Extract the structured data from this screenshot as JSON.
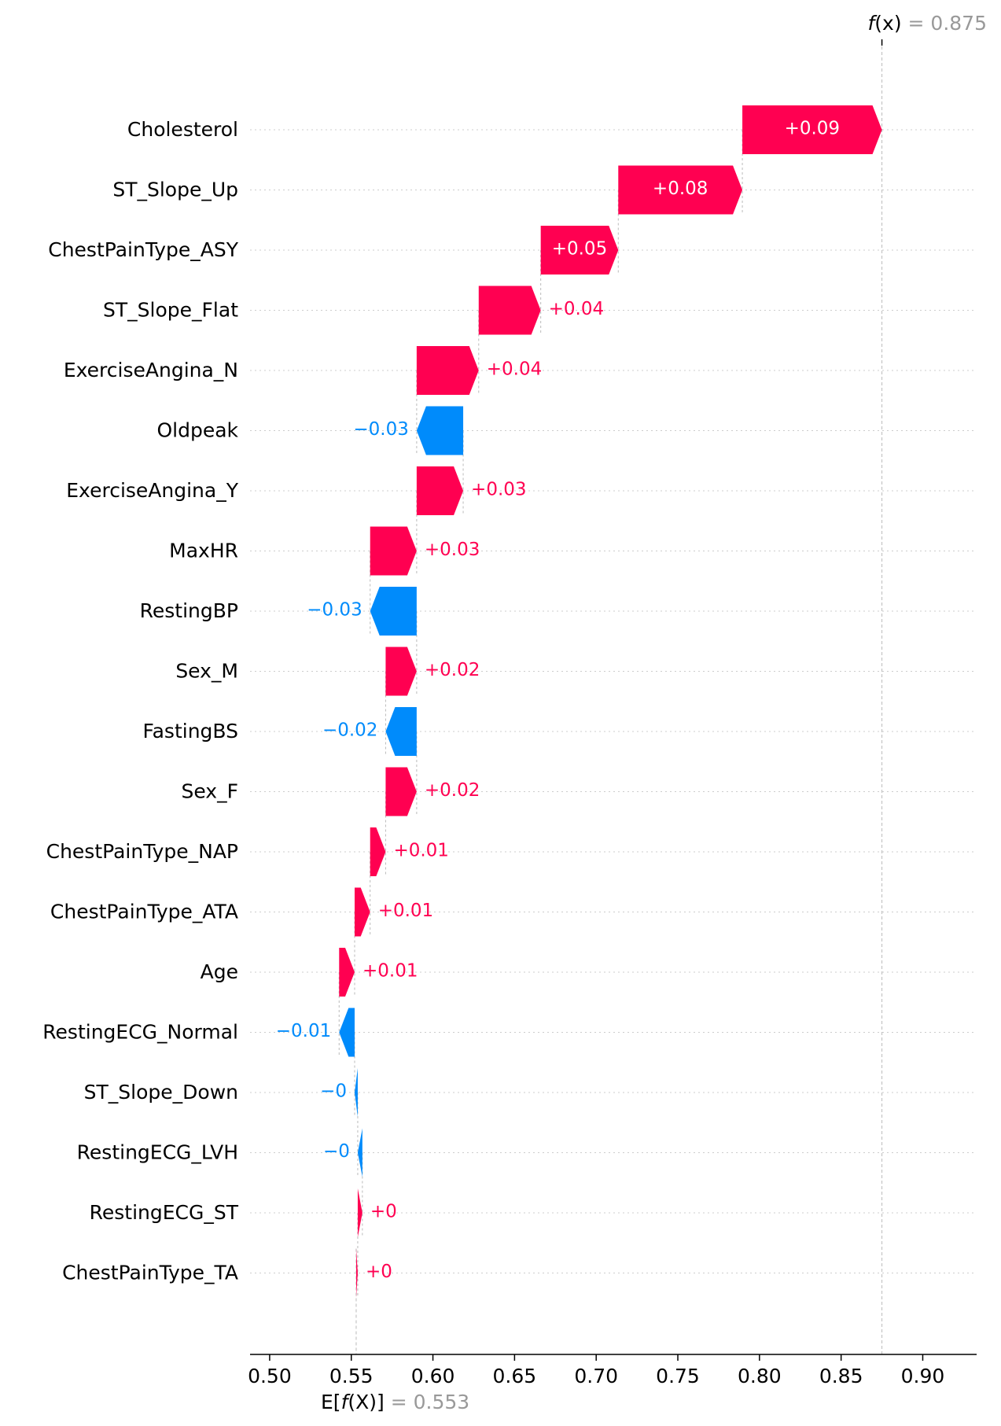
{
  "chart_data": {
    "type": "waterfall",
    "features": [
      {
        "name": "Cholesterol",
        "value": 0.09,
        "label": "+0.09"
      },
      {
        "name": "ST_Slope_Up",
        "value": 0.08,
        "label": "+0.08"
      },
      {
        "name": "ChestPainType_ASY",
        "value": 0.05,
        "label": "+0.05"
      },
      {
        "name": "ST_Slope_Flat",
        "value": 0.04,
        "label": "+0.04"
      },
      {
        "name": "ExerciseAngina_N",
        "value": 0.04,
        "label": "+0.04"
      },
      {
        "name": "Oldpeak",
        "value": -0.03,
        "label": "−0.03"
      },
      {
        "name": "ExerciseAngina_Y",
        "value": 0.03,
        "label": "+0.03"
      },
      {
        "name": "MaxHR",
        "value": 0.03,
        "label": "+0.03"
      },
      {
        "name": "RestingBP",
        "value": -0.03,
        "label": "−0.03"
      },
      {
        "name": "Sex_M",
        "value": 0.02,
        "label": "+0.02"
      },
      {
        "name": "FastingBS",
        "value": -0.02,
        "label": "−0.02"
      },
      {
        "name": "Sex_F",
        "value": 0.02,
        "label": "+0.02"
      },
      {
        "name": "ChestPainType_NAP",
        "value": 0.01,
        "label": "+0.01"
      },
      {
        "name": "ChestPainType_ATA",
        "value": 0.01,
        "label": "+0.01"
      },
      {
        "name": "Age",
        "value": 0.01,
        "label": "+0.01"
      },
      {
        "name": "RestingECG_Normal",
        "value": -0.01,
        "label": "−0.01"
      },
      {
        "name": "ST_Slope_Down",
        "value": -0.002,
        "label": "−0"
      },
      {
        "name": "RestingECG_LVH",
        "value": -0.003,
        "label": "−0"
      },
      {
        "name": "RestingECG_ST",
        "value": 0.003,
        "label": "+0"
      },
      {
        "name": "ChestPainType_TA",
        "value": 0.001,
        "label": "+0"
      }
    ],
    "base_value": 0.553,
    "output_value": 0.875,
    "xlim": [
      0.488,
      0.933
    ],
    "xticks": [
      "0.50",
      "0.55",
      "0.60",
      "0.65",
      "0.70",
      "0.75",
      "0.80",
      "0.85",
      "0.90"
    ],
    "fx_label": {
      "func": "f",
      "arg": "(x)",
      "eq": " = 0.875"
    },
    "efx_label": {
      "prefix": "E[",
      "func": "f",
      "arg": "(X)",
      "suffix": "]",
      "eq": " = 0.553"
    },
    "colors": {
      "positive": "#ff0051",
      "negative": "#008bfb",
      "grid": "#cccccc",
      "axis": "#000000",
      "annotation": "#999999"
    }
  }
}
